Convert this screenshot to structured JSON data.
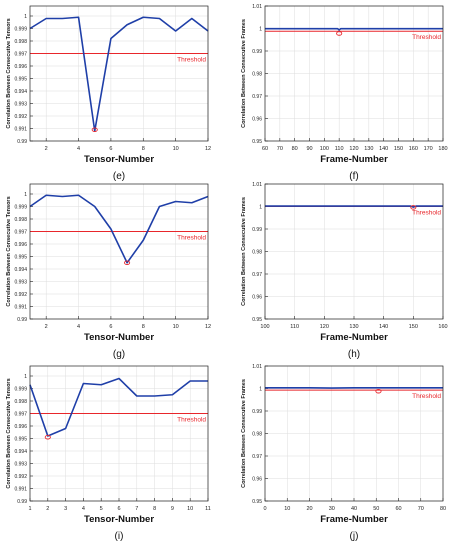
{
  "colors": {
    "series": "#1f3fa8",
    "threshold": "#e8262b",
    "marker": "#e8262b",
    "frame": "#222222",
    "grid": "#dddddd"
  },
  "chart_data": [
    {
      "id": "e",
      "type": "line",
      "subcaption": "(e)",
      "xlabel": "Tensor-Number",
      "ylabel": "Correlation Between Consecutive Tensors",
      "xlim": [
        1,
        12
      ],
      "ylim": [
        0.99,
        1.0008
      ],
      "xticks": [
        2,
        4,
        6,
        8,
        10,
        12
      ],
      "xtick_labels": [
        "2",
        "4",
        "6",
        "8",
        "10",
        "12"
      ],
      "yticks": [
        0.99,
        0.991,
        0.992,
        0.993,
        0.994,
        0.995,
        0.996,
        0.997,
        0.998,
        0.999,
        1
      ],
      "ytick_labels": [
        "0.99",
        "0.991",
        "0.992",
        "0.993",
        "0.994",
        "0.995",
        "0.996",
        "0.997",
        "0.998",
        "0.999",
        "1"
      ],
      "series": [
        {
          "x": [
            1,
            2,
            3,
            4,
            5,
            6,
            7,
            8,
            9,
            10,
            11,
            12
          ],
          "y": [
            0.999,
            0.9998,
            0.9998,
            0.9999,
            0.9908,
            0.9982,
            0.9993,
            0.9999,
            0.9998,
            0.9988,
            0.9998,
            0.9988
          ]
        }
      ],
      "threshold": 0.997,
      "threshold_label": "Threshold",
      "marker": {
        "x": 5,
        "y": 0.9909
      }
    },
    {
      "id": "f",
      "type": "line",
      "subcaption": "(f)",
      "xlabel": "Frame-Number",
      "ylabel": "Correlation Between Consecutive Frames",
      "xlim": [
        60,
        180
      ],
      "ylim": [
        0.95,
        1.01
      ],
      "xticks": [
        60,
        70,
        80,
        90,
        100,
        110,
        120,
        130,
        140,
        150,
        160,
        170,
        180
      ],
      "xtick_labels": [
        "60",
        "70",
        "80",
        "90",
        "100",
        "110",
        "120",
        "130",
        "140",
        "150",
        "160",
        "170",
        "180"
      ],
      "yticks": [
        0.95,
        0.96,
        0.97,
        0.98,
        0.99,
        1,
        1.01
      ],
      "ytick_labels": [
        "0.95",
        "0.96",
        "0.97",
        "0.98",
        "0.99",
        "1",
        "1.01"
      ],
      "series": [
        {
          "x": [
            60,
            109,
            110,
            111,
            112,
            180
          ],
          "y": [
            0.9999,
            0.9999,
            0.9993,
            0.9999,
            0.9999,
            0.9999
          ]
        }
      ],
      "threshold": 0.9988,
      "threshold_label": "Threshold",
      "marker": {
        "x": 110,
        "y": 0.9978
      }
    },
    {
      "id": "g",
      "type": "line",
      "subcaption": "(g)",
      "xlabel": "Tensor-Number",
      "ylabel": "Correlation Between Consecutive Tensors",
      "xlim": [
        1,
        12
      ],
      "ylim": [
        0.99,
        1.0008
      ],
      "xticks": [
        2,
        4,
        6,
        8,
        10,
        12
      ],
      "xtick_labels": [
        "2",
        "4",
        "6",
        "8",
        "10",
        "12"
      ],
      "yticks": [
        0.99,
        0.991,
        0.992,
        0.993,
        0.994,
        0.995,
        0.996,
        0.997,
        0.998,
        0.999,
        1
      ],
      "ytick_labels": [
        "0.99",
        "0.991",
        "0.992",
        "0.993",
        "0.994",
        "0.995",
        "0.996",
        "0.997",
        "0.998",
        "0.999",
        "1"
      ],
      "series": [
        {
          "x": [
            1,
            2,
            3,
            4,
            5,
            6,
            7,
            8,
            9,
            10,
            11,
            12
          ],
          "y": [
            0.999,
            0.9999,
            0.9998,
            0.9999,
            0.999,
            0.9972,
            0.9945,
            0.9963,
            0.999,
            0.9994,
            0.9993,
            0.9998
          ]
        }
      ],
      "threshold": 0.997,
      "threshold_label": "Threshold",
      "marker": {
        "x": 7,
        "y": 0.9945
      }
    },
    {
      "id": "h",
      "type": "line",
      "subcaption": "(h)",
      "xlabel": "Frame-Number",
      "ylabel": "Correlation Between Consecutive Frames",
      "xlim": [
        100,
        160
      ],
      "ylim": [
        0.95,
        1.01
      ],
      "xticks": [
        100,
        110,
        120,
        130,
        140,
        150,
        160
      ],
      "xtick_labels": [
        "100",
        "110",
        "120",
        "130",
        "140",
        "150",
        "160"
      ],
      "yticks": [
        0.95,
        0.96,
        0.97,
        0.98,
        0.99,
        1,
        1.01
      ],
      "ytick_labels": [
        "0.95",
        "0.96",
        "0.97",
        "0.98",
        "0.99",
        "1",
        "1.01"
      ],
      "series": [
        {
          "x": [
            100,
            149,
            150,
            151,
            160
          ],
          "y": [
            1.0002,
            1.0002,
            0.9997,
            1.0002,
            1.0002
          ]
        }
      ],
      "threshold": 1.0,
      "threshold_label": "Threshold",
      "marker": {
        "x": 150,
        "y": 0.9996
      }
    },
    {
      "id": "i",
      "type": "line",
      "subcaption": "(i)",
      "xlabel": "Tensor-Number",
      "ylabel": "Correlation Between Consecutive Tensors",
      "xlim": [
        1,
        11
      ],
      "ylim": [
        0.99,
        1.0008
      ],
      "xticks": [
        1,
        2,
        3,
        4,
        5,
        6,
        7,
        8,
        9,
        10,
        11
      ],
      "xtick_labels": [
        "1",
        "2",
        "3",
        "4",
        "5",
        "6",
        "7",
        "8",
        "9",
        "10",
        "11"
      ],
      "yticks": [
        0.99,
        0.991,
        0.992,
        0.993,
        0.994,
        0.995,
        0.996,
        0.997,
        0.998,
        0.999,
        1
      ],
      "ytick_labels": [
        "0.99",
        "0.991",
        "0.992",
        "0.993",
        "0.994",
        "0.995",
        "0.996",
        "0.997",
        "0.998",
        "0.999",
        "1"
      ],
      "series": [
        {
          "x": [
            1,
            2,
            3,
            4,
            5,
            6,
            7,
            8,
            9,
            10,
            11
          ],
          "y": [
            0.9993,
            0.9952,
            0.9958,
            0.9994,
            0.9993,
            0.9998,
            0.9984,
            0.9984,
            0.9985,
            0.9996,
            0.9996
          ]
        }
      ],
      "threshold": 0.997,
      "threshold_label": "Threshold",
      "marker": {
        "x": 2,
        "y": 0.9951
      }
    },
    {
      "id": "j",
      "type": "line",
      "subcaption": "(j)",
      "xlabel": "Frame-Number",
      "ylabel": "Correlation Between Consecutive Frames",
      "xlim": [
        0,
        80
      ],
      "ylim": [
        0.95,
        1.01
      ],
      "xticks": [
        0,
        10,
        20,
        30,
        40,
        50,
        60,
        70,
        80
      ],
      "xtick_labels": [
        "0",
        "10",
        "20",
        "30",
        "40",
        "50",
        "60",
        "70",
        "80"
      ],
      "yticks": [
        0.95,
        0.96,
        0.97,
        0.98,
        0.99,
        1,
        1.01
      ],
      "ytick_labels": [
        "0.95",
        "0.96",
        "0.97",
        "0.98",
        "0.99",
        "1",
        "1.01"
      ],
      "series": [
        {
          "x": [
            0,
            10,
            20,
            30,
            40,
            50,
            60,
            70,
            80
          ],
          "y": [
            1.0003,
            1.0003,
            1.0003,
            1.0002,
            1.0003,
            1.0003,
            1.0003,
            1.0003,
            1.0003
          ]
        }
      ],
      "threshold": 0.9993,
      "threshold_label": "Threshold",
      "marker": {
        "x": 51,
        "y": 0.9988
      }
    }
  ]
}
